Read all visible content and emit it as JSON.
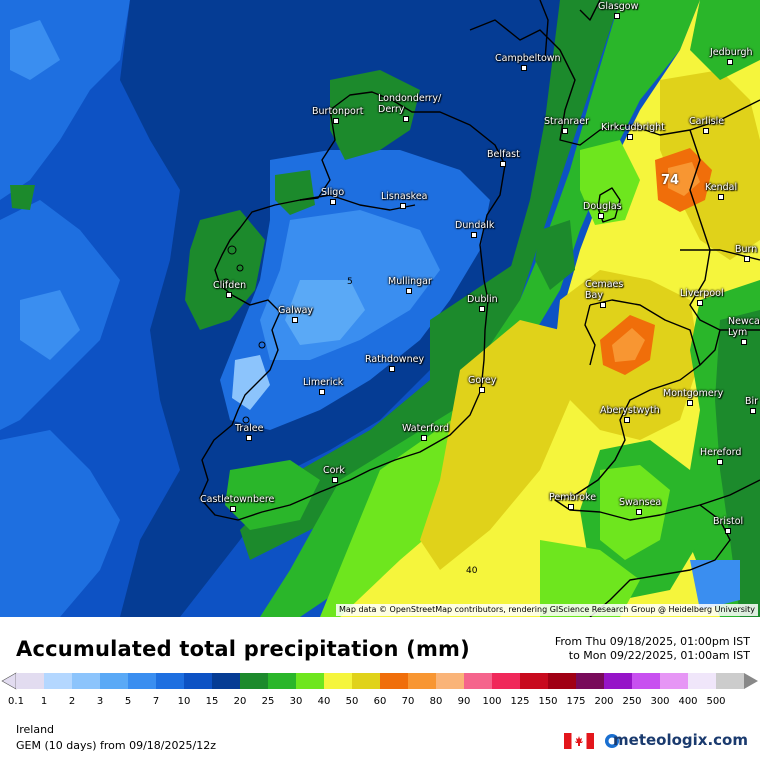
{
  "map": {
    "cities": [
      {
        "name": "Glasgow",
        "dot": "right"
      },
      {
        "name": "Jedburgh"
      },
      {
        "name": "Campbeltown"
      },
      {
        "name": "Burtonport"
      },
      {
        "name": "Londonderry/\nDerry"
      },
      {
        "name": "Stranraer"
      },
      {
        "name": "Kirkcudbright"
      },
      {
        "name": "Carlisle"
      },
      {
        "name": "Belfast"
      },
      {
        "name": "Sligo"
      },
      {
        "name": "Lisnaskea"
      },
      {
        "name": "Kendal"
      },
      {
        "name": "Douglas"
      },
      {
        "name": "Dundalk"
      },
      {
        "name": "Burn"
      },
      {
        "name": "Clifden"
      },
      {
        "name": "Mullingar"
      },
      {
        "name": "Cemaes\nBay"
      },
      {
        "name": "Liverpool"
      },
      {
        "name": "Galway"
      },
      {
        "name": "Dublin"
      },
      {
        "name": "Newca\nLym"
      },
      {
        "name": "Rathdowney"
      },
      {
        "name": "Limerick"
      },
      {
        "name": "Gorey"
      },
      {
        "name": "Montgomery"
      },
      {
        "name": "Bir"
      },
      {
        "name": "Aberystwyth"
      },
      {
        "name": "Tralee"
      },
      {
        "name": "Waterford"
      },
      {
        "name": "Hereford"
      },
      {
        "name": "Cork"
      },
      {
        "name": "Castletownbere"
      },
      {
        "name": "Pembroke"
      },
      {
        "name": "Swansea"
      },
      {
        "name": "Bristol"
      }
    ],
    "max_label": "74",
    "contour_labels": [
      "5",
      "40"
    ],
    "attribution": "Map data © OpenStreetMap contributors, rendering GIScience Research Group @ Heidelberg University"
  },
  "legend": {
    "title": "Accumulated total precipitation (mm)",
    "period_from": "From Thu 09/18/2025, 01:00pm IST",
    "period_to": "to Mon 09/22/2025, 01:00am IST",
    "scale": [
      {
        "value": "0.1",
        "color": "#e2dcf0"
      },
      {
        "value": "1",
        "color": "#b4d7ff"
      },
      {
        "value": "2",
        "color": "#8cc4fc"
      },
      {
        "value": "3",
        "color": "#5aa9f6"
      },
      {
        "value": "5",
        "color": "#3a8ef0"
      },
      {
        "value": "7",
        "color": "#1e6fe0"
      },
      {
        "value": "10",
        "color": "#0d52c4"
      },
      {
        "value": "15",
        "color": "#053c94"
      },
      {
        "value": "20",
        "color": "#1c8a2c"
      },
      {
        "value": "25",
        "color": "#2ab62a"
      },
      {
        "value": "30",
        "color": "#6ee61e"
      },
      {
        "value": "40",
        "color": "#f5f53c"
      },
      {
        "value": "50",
        "color": "#e0d21a"
      },
      {
        "value": "60",
        "color": "#f06e0a"
      },
      {
        "value": "70",
        "color": "#f89632"
      },
      {
        "value": "80",
        "color": "#fab478"
      },
      {
        "value": "90",
        "color": "#f5648c"
      },
      {
        "value": "100",
        "color": "#f0285a"
      },
      {
        "value": "125",
        "color": "#c80a1e"
      },
      {
        "value": "150",
        "color": "#a00014"
      },
      {
        "value": "175",
        "color": "#780a5a"
      },
      {
        "value": "200",
        "color": "#9614c8"
      },
      {
        "value": "250",
        "color": "#c850f0"
      },
      {
        "value": "300",
        "color": "#e696f5"
      },
      {
        "value": "400",
        "color": "#f0e6fa"
      },
      {
        "value": "500",
        "color": "#cccccc"
      }
    ],
    "region": "Ireland",
    "model": "GEM (10 days) from 09/18/2025/12z",
    "brand": "meteologix.com"
  }
}
